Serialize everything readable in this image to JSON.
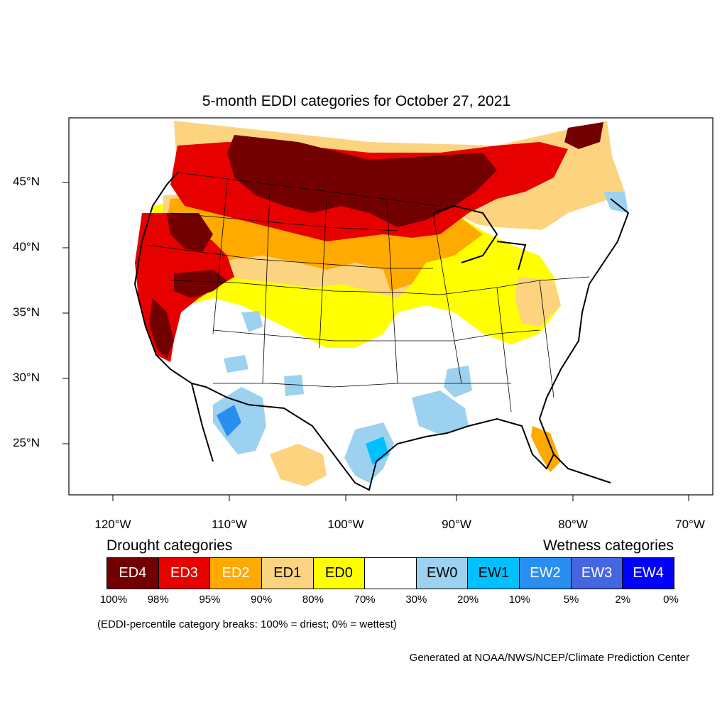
{
  "title": "5-month EDDI categories for October 27, 2021",
  "lat_labels": [
    "45°N",
    "40°N",
    "35°N",
    "30°N",
    "25°N"
  ],
  "lon_labels": [
    "120°W",
    "110°W",
    "100°W",
    "90°W",
    "80°W",
    "70°W"
  ],
  "legend": {
    "drought_heading": "Drought categories",
    "wetness_heading": "Wetness categories",
    "categories": [
      {
        "label": "ED4",
        "color": "#730000",
        "text_color": "#ffffff"
      },
      {
        "label": "ED3",
        "color": "#e60000",
        "text_color": "#ffffff"
      },
      {
        "label": "ED2",
        "color": "#ffaa00",
        "text_color": "#ffffff"
      },
      {
        "label": "ED1",
        "color": "#fcd37f",
        "text_color": "#000000"
      },
      {
        "label": "ED0",
        "color": "#ffff00",
        "text_color": "#000000"
      },
      {
        "label": "",
        "color": "#ffffff",
        "text_color": "#000000"
      },
      {
        "label": "EW0",
        "color": "#9dd1f0",
        "text_color": "#000000"
      },
      {
        "label": "EW1",
        "color": "#00c0ff",
        "text_color": "#000000"
      },
      {
        "label": "EW2",
        "color": "#2a8ef0",
        "text_color": "#ffffff"
      },
      {
        "label": "EW3",
        "color": "#4466e0",
        "text_color": "#ffffff"
      },
      {
        "label": "EW4",
        "color": "#0000ff",
        "text_color": "#ffffff"
      }
    ],
    "breaks": [
      "100%",
      "98%",
      "95%",
      "90%",
      "80%",
      "70%",
      "30%",
      "20%",
      "10%",
      "5%",
      "2%",
      "0%"
    ]
  },
  "note": "(EDDI-percentile category breaks: 100% = driest; 0% = wettest)",
  "credit": "Generated at NOAA/NWS/NCEP/Climate Prediction Center"
}
